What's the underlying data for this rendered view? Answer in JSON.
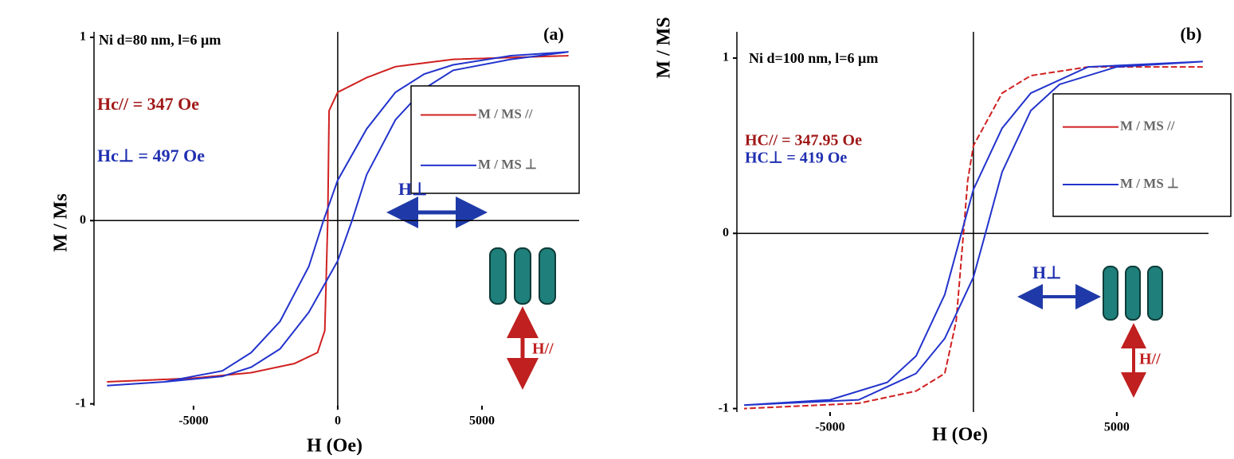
{
  "chart_data": [
    {
      "type": "line",
      "label": "Ni d=80 nm, l=6 µm",
      "panel": "(a)",
      "hc_parallel": "Hc// = 347 Oe",
      "hc_perp": "Hc⊥ = 497 Oe",
      "field_perp": "H⊥",
      "field_parallel": "H//",
      "x_label": "H (Oe)",
      "y_label": "M / Ms",
      "xlim": [
        -8450,
        8370
      ],
      "ylim": [
        -1.01,
        1.03
      ],
      "xticks": [
        -5000,
        0,
        5000
      ],
      "yticks": [
        -1,
        0,
        1
      ],
      "series": [
        {
          "name": "M / MS //",
          "color": "#d02020",
          "style": "dashed",
          "x": [
            8000,
            4000,
            2000,
            1000,
            500,
            0,
            -300,
            -347,
            -450,
            -700,
            -1500,
            -3000,
            -5000,
            -8000,
            -8000,
            -5000,
            -3000,
            -1500,
            -700,
            -450,
            -347,
            -300,
            0,
            500,
            1000,
            2000,
            4000,
            8000
          ],
          "values": [
            0.9,
            0.88,
            0.84,
            0.78,
            0.74,
            0.7,
            0.6,
            0,
            -0.6,
            -0.72,
            -0.78,
            -0.83,
            -0.86,
            -0.88,
            -0.88,
            -0.86,
            -0.83,
            -0.78,
            -0.72,
            -0.6,
            0,
            0.6,
            0.7,
            0.74,
            0.78,
            0.84,
            0.88,
            0.9
          ]
        },
        {
          "name": "M / MS ⊥",
          "color": "#2233cc",
          "style": "solid",
          "x": [
            8000,
            6000,
            4000,
            3000,
            2000,
            1000,
            0,
            -497,
            -1000,
            -2000,
            -3000,
            -4000,
            -6000,
            -8000,
            -8000,
            -6000,
            -4000,
            -3000,
            -2000,
            -1000,
            0,
            497,
            1000,
            2000,
            3000,
            4000,
            6000,
            8000
          ],
          "values": [
            0.92,
            0.9,
            0.85,
            0.8,
            0.7,
            0.5,
            0.22,
            0,
            -0.25,
            -0.55,
            -0.72,
            -0.82,
            -0.88,
            -0.9,
            -0.9,
            -0.88,
            -0.85,
            -0.8,
            -0.7,
            -0.5,
            -0.22,
            0,
            0.25,
            0.55,
            0.72,
            0.82,
            0.88,
            0.92
          ]
        }
      ]
    },
    {
      "type": "line",
      "label": "Ni d=100 nm, l=6 µm",
      "panel": "(b)",
      "hc_parallel": "HC// = 347.95 Oe",
      "hc_perp": "HC⊥ = 419 Oe",
      "field_perp": "H⊥",
      "field_parallel": "H//",
      "x_label": "H (Oe)",
      "y_label": "M / MS",
      "xlim": [
        -8250,
        8200
      ],
      "ylim": [
        -1.02,
        1.15
      ],
      "xticks": [
        -5000,
        5000
      ],
      "yticks": [
        -1,
        0,
        1
      ],
      "series": [
        {
          "name": "M / MS //",
          "color": "#d02020",
          "style": "dashed",
          "x": [
            8000,
            4000,
            2000,
            1000,
            0,
            -200,
            -348,
            -600,
            -1000,
            -2000,
            -4000,
            -8000,
            -8000,
            -4000,
            -2000,
            -1000,
            -600,
            -348,
            -200,
            0,
            1000,
            2000,
            4000,
            8000
          ],
          "values": [
            0.95,
            0.95,
            0.9,
            0.8,
            0.5,
            0.3,
            0,
            -0.5,
            -0.8,
            -0.9,
            -0.97,
            -1.0,
            -1.0,
            -0.97,
            -0.9,
            -0.8,
            -0.5,
            0,
            0.3,
            0.5,
            0.8,
            0.9,
            0.95,
            0.95
          ]
        },
        {
          "name": "M / MS ⊥",
          "color": "#2233cc",
          "style": "solid",
          "x": [
            8000,
            4000,
            2000,
            1000,
            0,
            -419,
            -1000,
            -2000,
            -3000,
            -5000,
            -8000,
            -8000,
            -4000,
            -2000,
            -1000,
            0,
            419,
            1000,
            2000,
            3000,
            5000,
            8000
          ],
          "values": [
            0.98,
            0.95,
            0.8,
            0.6,
            0.25,
            0,
            -0.35,
            -0.7,
            -0.85,
            -0.95,
            -0.98,
            -0.98,
            -0.95,
            -0.8,
            -0.6,
            -0.25,
            0,
            0.35,
            0.7,
            0.85,
            0.95,
            0.98
          ]
        }
      ]
    }
  ]
}
